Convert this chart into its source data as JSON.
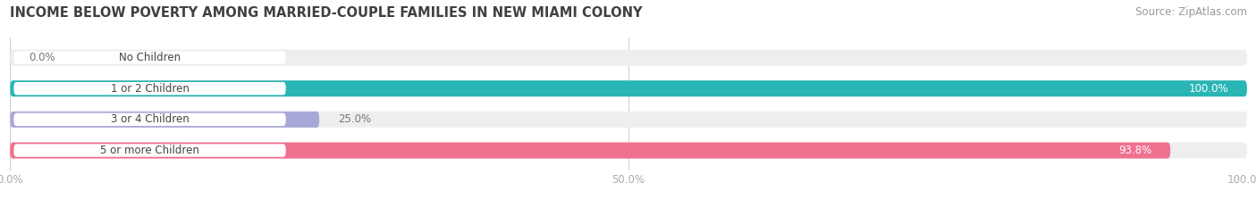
{
  "title": "INCOME BELOW POVERTY AMONG MARRIED-COUPLE FAMILIES IN NEW MIAMI COLONY",
  "source": "Source: ZipAtlas.com",
  "categories": [
    "No Children",
    "1 or 2 Children",
    "3 or 4 Children",
    "5 or more Children"
  ],
  "values": [
    0.0,
    100.0,
    25.0,
    93.8
  ],
  "bar_colors": [
    "#c4a8d4",
    "#2ab5b5",
    "#a8a8d8",
    "#f07090"
  ],
  "bar_bg_color": "#eeeeee",
  "label_pill_color": "#ffffff",
  "title_fontsize": 10.5,
  "source_fontsize": 8.5,
  "tick_fontsize": 8.5,
  "bar_label_fontsize": 8.5,
  "cat_label_fontsize": 8.5,
  "xlim": [
    0,
    100
  ],
  "xticks": [
    0.0,
    50.0,
    100.0
  ],
  "xtick_labels": [
    "0.0%",
    "50.0%",
    "100.0%"
  ],
  "background_color": "#ffffff",
  "bar_height": 0.52,
  "value_label_inside_color": "#ffffff",
  "value_label_outside_color": "#777777",
  "cat_label_color": "#444444"
}
